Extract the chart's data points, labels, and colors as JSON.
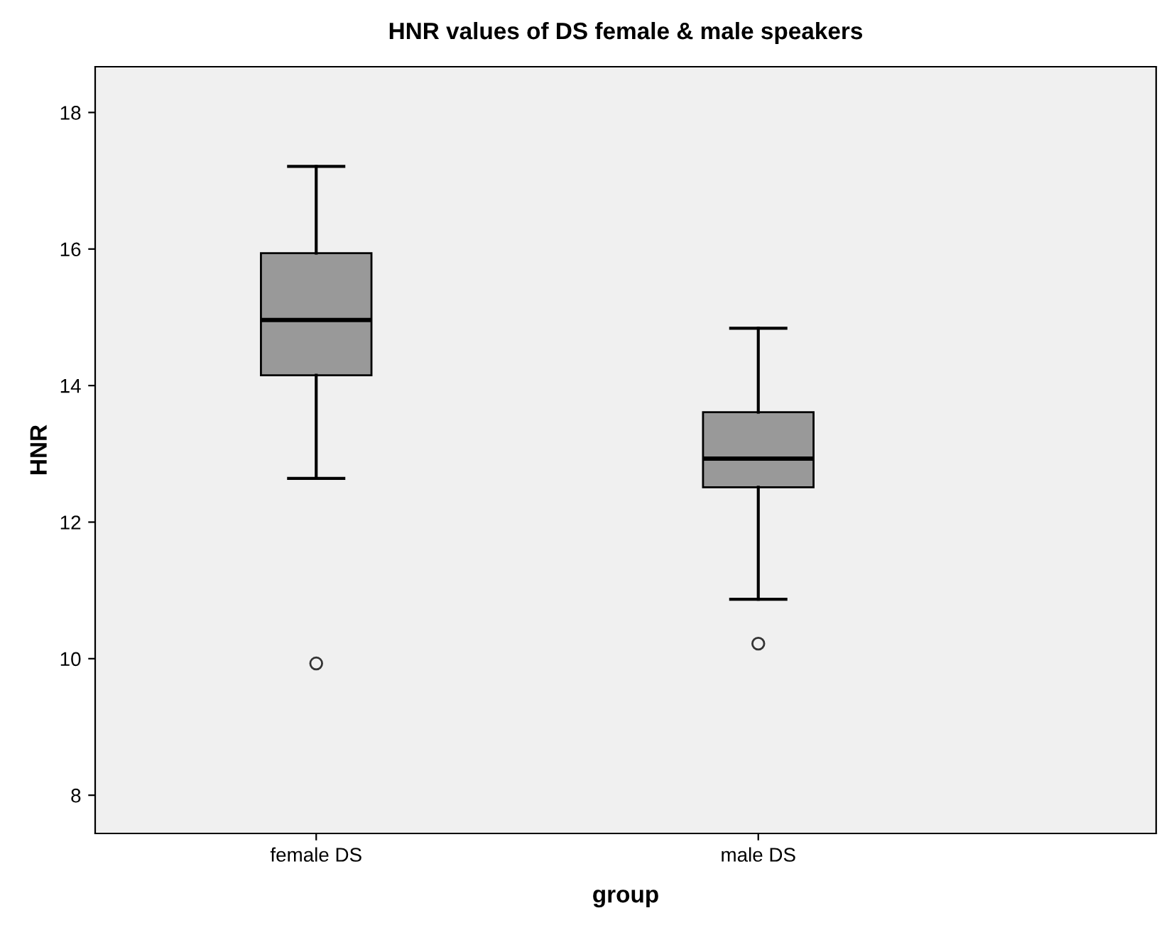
{
  "chart_data": {
    "type": "box",
    "title": "HNR values of DS female & male speakers",
    "xlabel": "group",
    "ylabel": "HNR",
    "categories": [
      "female DS",
      "male DS"
    ],
    "boxes": [
      {
        "low": 12.64,
        "q1": 14.15,
        "median": 14.96,
        "q3": 15.94,
        "high": 17.21,
        "outliers": [
          9.93
        ]
      },
      {
        "low": 10.87,
        "q1": 12.51,
        "median": 12.93,
        "q3": 13.61,
        "high": 14.84,
        "outliers": [
          10.22
        ]
      }
    ],
    "color": "#999999",
    "ylim": [
      7.44,
      18.67
    ],
    "yticks": [
      8,
      10,
      12,
      14,
      16,
      18
    ],
    "grid": false
  }
}
